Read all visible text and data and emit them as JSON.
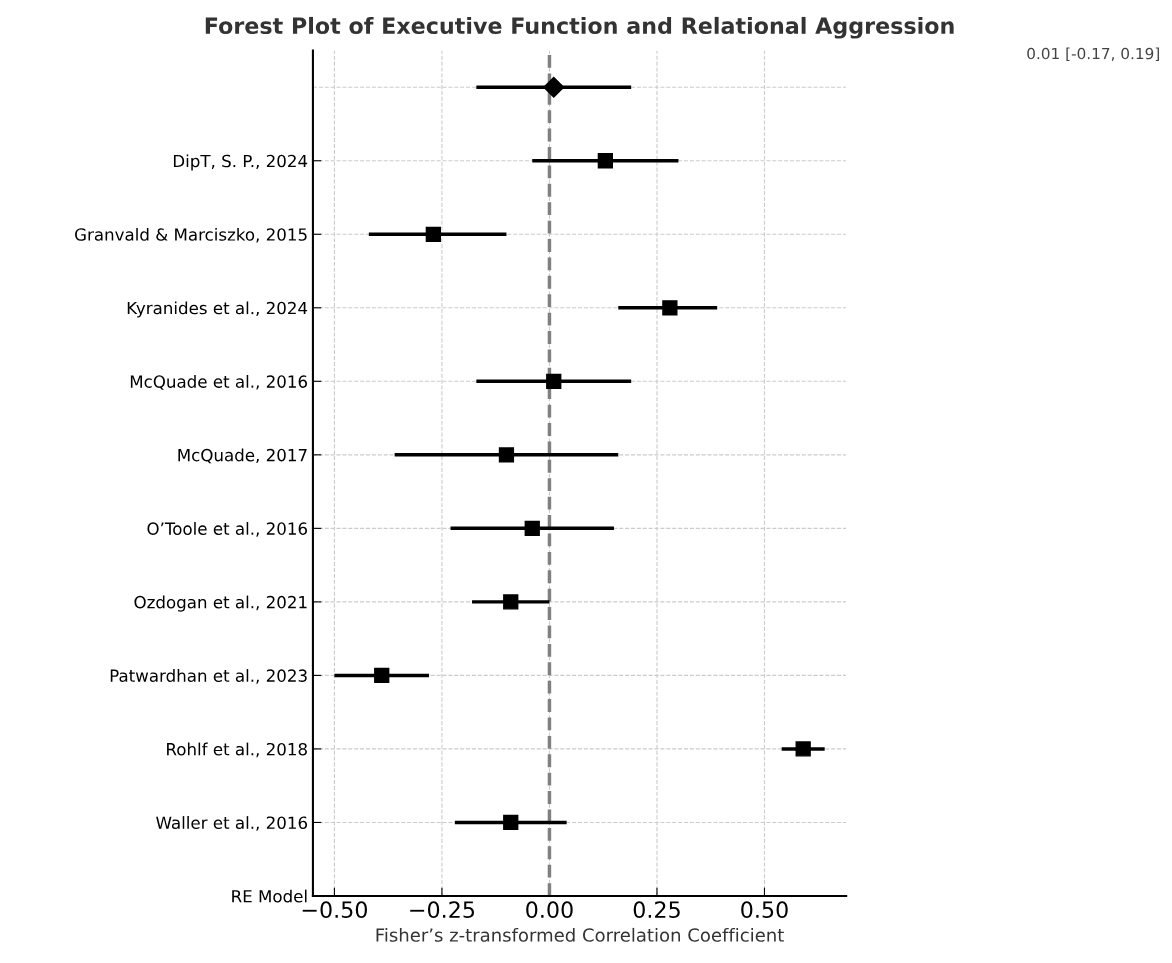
{
  "chart_data": {
    "type": "scatter",
    "orientation": "horizontal",
    "title": "Forest Plot of Executive Function and Relational Aggression",
    "xlabel": "Fisher’s z-transformed Correlation Coefficient",
    "categories": [
      null,
      "DipT, S. P., 2024",
      "Granvald & Marciszko, 2015",
      "Kyranides et al., 2024",
      "McQuade et al., 2016",
      "McQuade, 2017",
      "O’Toole et al., 2016",
      "Ozdogan et al., 2021",
      "Patwardhan et al., 2023",
      "Rohlf et al., 2018",
      "Waller et al., 2016",
      "RE Model"
    ],
    "series": [
      {
        "color": "#000000",
        "marker": "square",
        "values": [
          null,
          0.13,
          -0.27,
          0.28,
          0.01,
          -0.1,
          -0.04,
          -0.09,
          -0.39,
          0.59,
          -0.09,
          null
        ],
        "errors": [
          null,
          [
            -0.04,
            0.3
          ],
          [
            -0.42,
            -0.1
          ],
          [
            0.16,
            0.39
          ],
          [
            -0.17,
            0.19
          ],
          [
            -0.36,
            0.16
          ],
          [
            -0.23,
            0.15
          ],
          [
            -0.18,
            0.0
          ],
          [
            -0.5,
            -0.28
          ],
          [
            0.54,
            0.64
          ],
          [
            -0.22,
            0.04
          ],
          null
        ]
      },
      {
        "color": "#000000",
        "marker": "diamond",
        "values": [
          0.01,
          null,
          null,
          null,
          null,
          null,
          null,
          null,
          null,
          null,
          null,
          null
        ],
        "errors": [
          [
            -0.17,
            0.19
          ],
          null,
          null,
          null,
          null,
          null,
          null,
          null,
          null,
          null,
          null,
          null
        ]
      }
    ],
    "xlim": [
      -0.55,
      0.69
    ],
    "xticks": [
      {
        "value": -0.5,
        "label": "−0.50"
      },
      {
        "value": -0.25,
        "label": "−0.25"
      },
      {
        "value": 0,
        "label": "0.00"
      },
      {
        "value": 0.25,
        "label": "0.25"
      },
      {
        "value": 0.5,
        "label": "0.50"
      }
    ],
    "ref_lines": [
      {
        "axis": "x",
        "value": 0,
        "color": "#808080",
        "line_style": "dashed"
      }
    ],
    "annotations": [
      "0.01 [-0.17, 0.19]"
    ],
    "grid": true
  }
}
